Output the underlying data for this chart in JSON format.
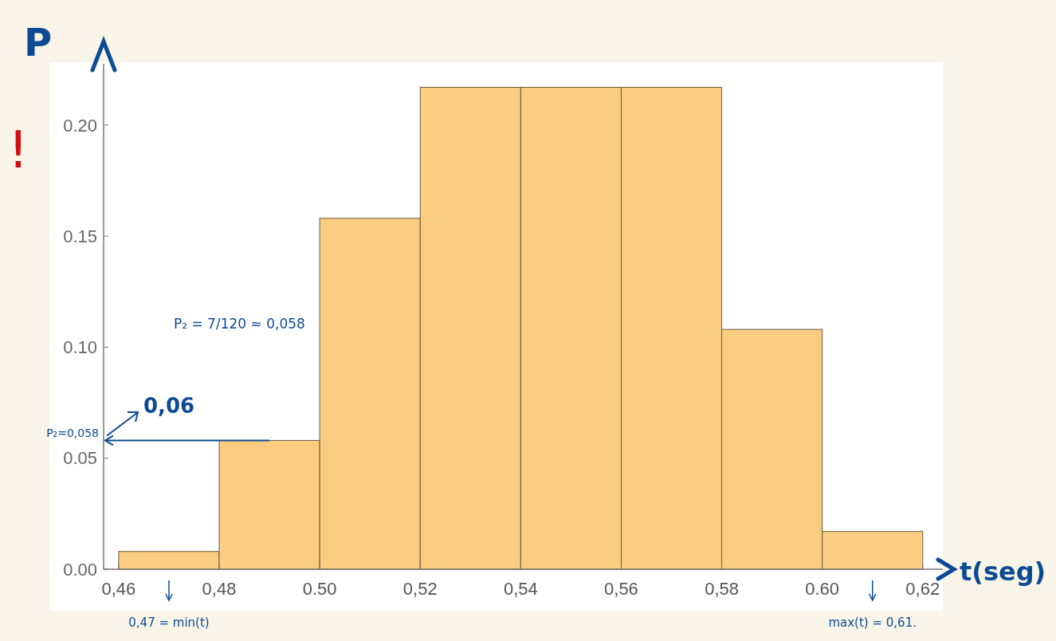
{
  "chart_data": {
    "type": "histogram",
    "xlabel": "t(seg)",
    "ylabel": "P",
    "bins": [
      0.46,
      0.48,
      0.5,
      0.52,
      0.54,
      0.56,
      0.58,
      0.6,
      0.62
    ],
    "values": [
      0.008,
      0.058,
      0.158,
      0.217,
      0.217,
      0.217,
      0.108,
      0.017
    ],
    "color": "#fbcd80",
    "xlim": [
      0.457,
      0.624
    ],
    "ylim": [
      0,
      0.2276
    ],
    "xticks": [
      {
        "value": 0.46,
        "label": "0,46"
      },
      {
        "value": 0.48,
        "label": "0,48"
      },
      {
        "value": 0.5,
        "label": "0.50"
      },
      {
        "value": 0.52,
        "label": "0,52"
      },
      {
        "value": 0.54,
        "label": "0,54"
      },
      {
        "value": 0.56,
        "label": "0,56"
      },
      {
        "value": 0.58,
        "label": "0,58"
      },
      {
        "value": 0.6,
        "label": "0.60"
      },
      {
        "value": 0.62,
        "label": "0,62"
      }
    ],
    "yticks": [
      {
        "value": 0,
        "label": "0.00"
      },
      {
        "value": 0.05,
        "label": "0.05"
      },
      {
        "value": 0.1,
        "label": "0.10"
      },
      {
        "value": 0.15,
        "label": "0.15"
      },
      {
        "value": 0.2,
        "label": "0.20"
      }
    ],
    "grid": false,
    "annotations": [
      "!",
      "P₂ = 7/120 ≈ 0,058",
      "0,06",
      {
        "text": "P₂=0,058",
        "x": 0.49,
        "y": 0.058
      },
      "0,47 = min(t)",
      "max(t) = 0,61."
    ]
  }
}
